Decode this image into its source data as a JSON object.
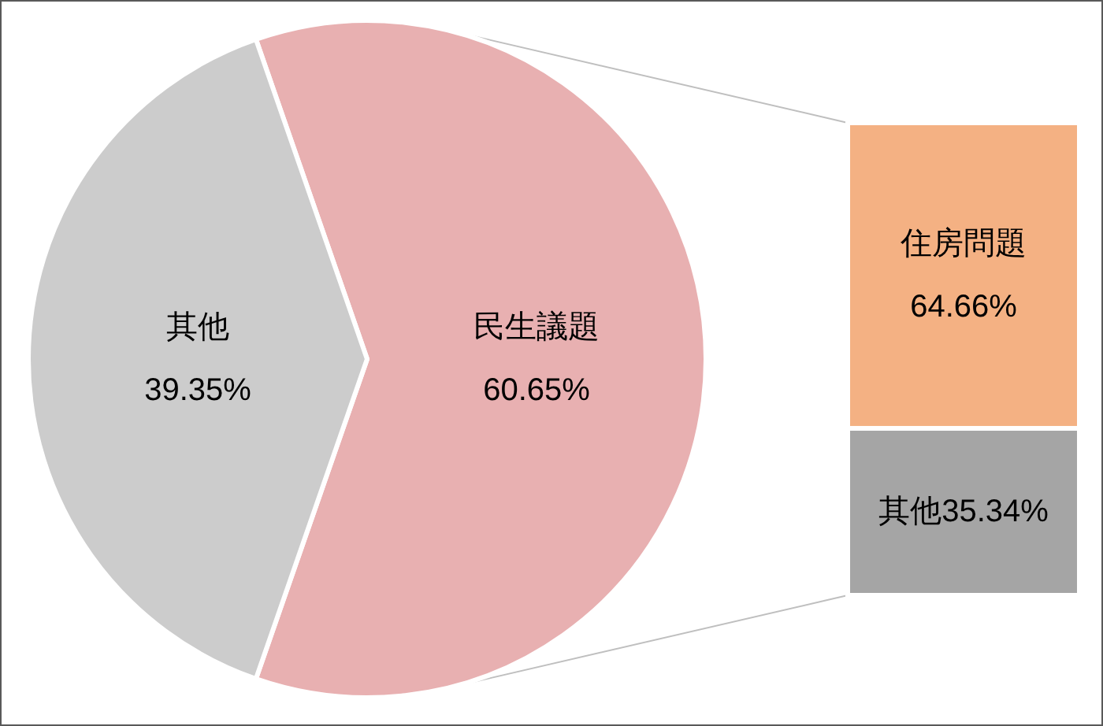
{
  "chart_data": [
    {
      "type": "pie",
      "categories": [
        "民生議題",
        "其他"
      ],
      "values": [
        60.65,
        39.35
      ],
      "colors": [
        "#e8b0b1",
        "#cccccc"
      ],
      "value_labels": [
        "60.65%",
        "39.35%"
      ]
    },
    {
      "type": "bar",
      "stacked": true,
      "categories": [
        null
      ],
      "series": [
        {
          "name": "其他",
          "color": "#a5a5a5",
          "values": [
            35.34
          ],
          "value_labels": [
            "35.34%"
          ]
        },
        {
          "name": "住房問題",
          "color": "#f4b183",
          "values": [
            64.66
          ],
          "value_labels": [
            "64.66%"
          ]
        }
      ]
    }
  ]
}
